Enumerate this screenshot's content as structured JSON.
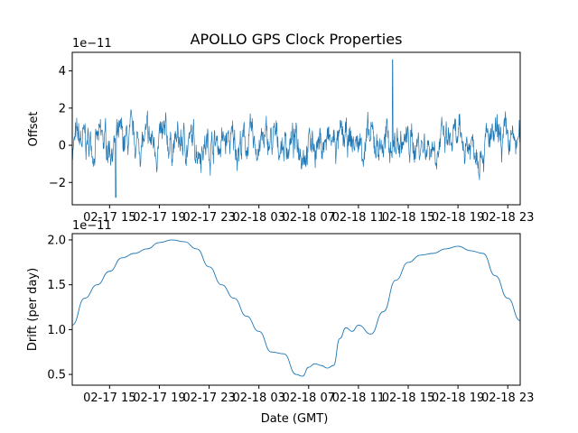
{
  "figure": {
    "title": "APOLLO GPS Clock Properties",
    "xlabel": "Date (GMT)"
  },
  "chart_data": [
    {
      "type": "line",
      "title": "APOLLO GPS Clock Properties",
      "ylabel": "Offset",
      "offset_text": "1e−11",
      "series_color": "#1f77b4",
      "xlim_hours": [
        12.0,
        48.0
      ],
      "ylim": [
        -3.2,
        5.0
      ],
      "x_ticks": [
        {
          "hour": 15,
          "label": "02-17 15"
        },
        {
          "hour": 19,
          "label": "02-17 19"
        },
        {
          "hour": 23,
          "label": "02-17 23"
        },
        {
          "hour": 27,
          "label": "02-18 03"
        },
        {
          "hour": 31,
          "label": "02-18 07"
        },
        {
          "hour": 35,
          "label": "02-18 11"
        },
        {
          "hour": 39,
          "label": "02-18 15"
        },
        {
          "hour": 43,
          "label": "02-18 19"
        },
        {
          "hour": 47,
          "label": "02-18 23"
        }
      ],
      "y_ticks": [
        {
          "value": -2,
          "label": "−2"
        },
        {
          "value": 0,
          "label": "0"
        },
        {
          "value": 2,
          "label": "2"
        },
        {
          "value": 4,
          "label": "4"
        }
      ],
      "noise": {
        "points": 1400,
        "seed": 7,
        "amplitude": 1.0
      },
      "spike": {
        "x": 37.75,
        "y": 4.6
      },
      "min": {
        "x": 15.5,
        "y": -2.8
      }
    },
    {
      "type": "line",
      "ylabel": "Drift (per day)",
      "offset_text": "1e−11",
      "series_color": "#1f77b4",
      "xlim_hours": [
        12.0,
        48.0
      ],
      "ylim": [
        0.38,
        2.07
      ],
      "x_ticks": [
        {
          "hour": 15,
          "label": "02-17 15"
        },
        {
          "hour": 19,
          "label": "02-17 19"
        },
        {
          "hour": 23,
          "label": "02-17 23"
        },
        {
          "hour": 27,
          "label": "02-18 03"
        },
        {
          "hour": 31,
          "label": "02-18 07"
        },
        {
          "hour": 35,
          "label": "02-18 11"
        },
        {
          "hour": 39,
          "label": "02-18 15"
        },
        {
          "hour": 43,
          "label": "02-18 19"
        },
        {
          "hour": 47,
          "label": "02-18 23"
        }
      ],
      "y_ticks": [
        {
          "value": 0.5,
          "label": "0.5"
        },
        {
          "value": 1.0,
          "label": "1.0"
        },
        {
          "value": 1.5,
          "label": "1.5"
        },
        {
          "value": 2.0,
          "label": "2.0"
        }
      ],
      "x": [
        12.0,
        13.0,
        14.0,
        15.0,
        16.0,
        17.0,
        18.0,
        19.0,
        20.0,
        21.0,
        22.0,
        23.0,
        24.0,
        25.0,
        26.0,
        27.0,
        28.0,
        29.0,
        30.0,
        30.5,
        31.0,
        31.5,
        32.0,
        32.5,
        33.0,
        33.5,
        34.0,
        34.5,
        35.0,
        36.0,
        37.0,
        38.0,
        39.0,
        40.0,
        41.0,
        42.0,
        43.0,
        44.0,
        45.0,
        46.0,
        47.0,
        48.0
      ],
      "y": [
        1.05,
        1.35,
        1.5,
        1.65,
        1.8,
        1.85,
        1.9,
        1.97,
        2.0,
        1.98,
        1.9,
        1.7,
        1.5,
        1.35,
        1.15,
        0.98,
        0.75,
        0.73,
        0.5,
        0.48,
        0.58,
        0.62,
        0.6,
        0.57,
        0.6,
        0.9,
        1.02,
        0.98,
        1.05,
        0.95,
        1.2,
        1.55,
        1.75,
        1.83,
        1.85,
        1.9,
        1.93,
        1.88,
        1.85,
        1.6,
        1.35,
        1.1
      ]
    }
  ]
}
